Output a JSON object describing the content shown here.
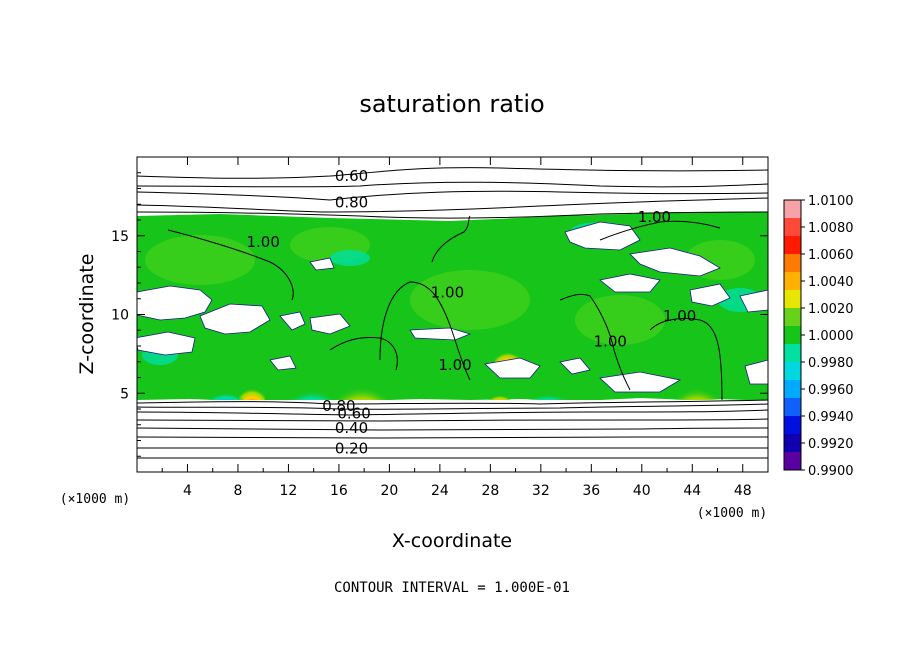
{
  "chart_data": {
    "type": "heatmap",
    "title": "saturation ratio",
    "xlabel": "X-coordinate",
    "ylabel": "Z-coordinate",
    "x_unit_label": "(×1000 m)",
    "y_unit_label": "(×1000 m)",
    "xlim": [
      0,
      50
    ],
    "ylim": [
      0,
      20
    ],
    "x_ticks": [
      4,
      8,
      12,
      16,
      20,
      24,
      28,
      32,
      36,
      40,
      44,
      48
    ],
    "y_ticks": [
      5,
      10,
      15
    ],
    "footer": "CONTOUR INTERVAL = 1.000E-01",
    "colorbar": {
      "min": 0.99,
      "max": 1.01,
      "labels": [
        "1.0100",
        "1.0080",
        "1.0060",
        "1.0040",
        "1.0020",
        "1.0000",
        "0.9980",
        "0.9960",
        "0.9940",
        "0.9920",
        "0.9900"
      ],
      "colors": [
        "#f5a3a8",
        "#ff4a3a",
        "#ff1a00",
        "#ff7a00",
        "#ffb000",
        "#e6e600",
        "#66d21a",
        "#16c41a",
        "#00e0a0",
        "#00d8e0",
        "#00aaff",
        "#1060ff",
        "#0010e0",
        "#1000b0",
        "#5a00a0"
      ]
    },
    "contour_labels": [
      {
        "text": "0.60",
        "x": 17.0,
        "z": 18.8
      },
      {
        "text": "0.80",
        "x": 17.0,
        "z": 17.1
      },
      {
        "text": "1.00",
        "x": 41.0,
        "z": 16.2
      },
      {
        "text": "1.00",
        "x": 10.0,
        "z": 14.6
      },
      {
        "text": "1.00",
        "x": 24.6,
        "z": 11.4
      },
      {
        "text": "1.00",
        "x": 43.0,
        "z": 9.9
      },
      {
        "text": "1.00",
        "x": 37.5,
        "z": 8.3
      },
      {
        "text": "1.00",
        "x": 25.2,
        "z": 6.8
      },
      {
        "text": "0.80",
        "x": 16.0,
        "z": 4.2
      },
      {
        "text": "0.60",
        "x": 17.2,
        "z": 3.7
      },
      {
        "text": "0.40",
        "x": 17.0,
        "z": 2.8
      },
      {
        "text": "0.20",
        "x": 17.0,
        "z": 1.5
      }
    ]
  }
}
